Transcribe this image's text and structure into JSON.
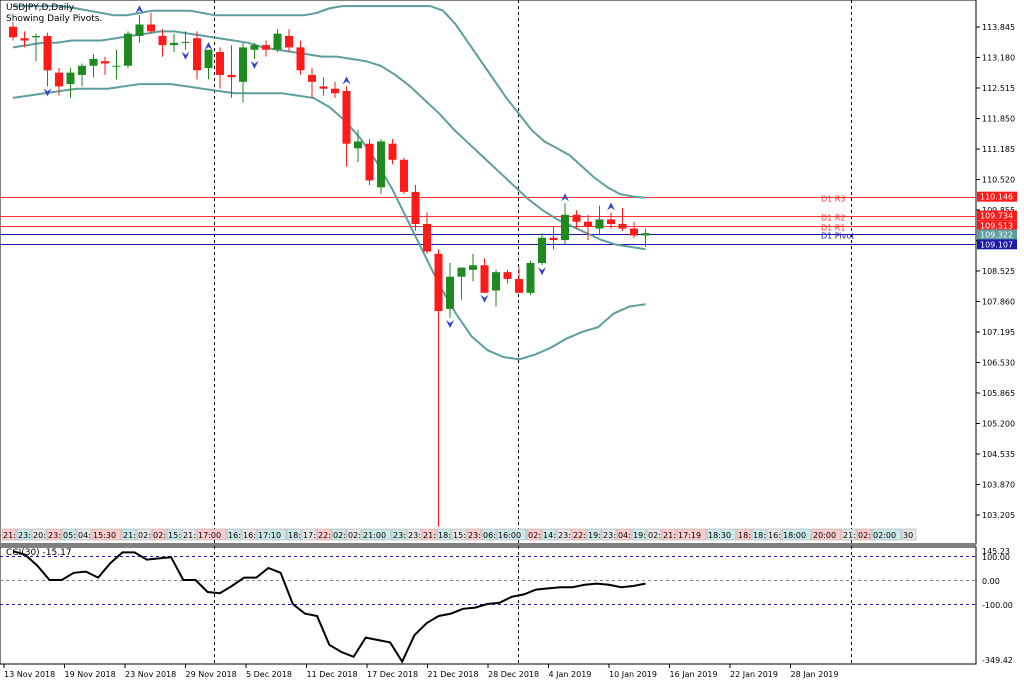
{
  "header": {
    "symbol_line": "USDJPY,D,Daily",
    "subtitle": "Showing Daily Pivots."
  },
  "colors": {
    "bull": "#1f8a1f",
    "bear": "#ff1a1a",
    "band": "#5f9ea0",
    "pivot_red": "#ff3333",
    "pivot_blue": "#1a1aa6",
    "arrow": "#3344cc"
  },
  "price_axis": {
    "labels": [
      "113.845",
      "113.180",
      "112.515",
      "111.850",
      "111.185",
      "110.520",
      "109.855",
      "109.190",
      "108.525",
      "107.860",
      "107.195",
      "106.530",
      "105.865",
      "105.200",
      "104.535",
      "103.870",
      "103.205"
    ],
    "highlight_labels": [
      {
        "text": "110.146",
        "color": "#ff1a1a"
      },
      {
        "text": "109.734",
        "color": "#ff1a1a"
      },
      {
        "text": "109.513",
        "color": "#ff1a1a"
      },
      {
        "text": "109.322",
        "color": "#5f9ea0"
      },
      {
        "text": "109.107",
        "color": "#1a1aa6"
      }
    ]
  },
  "pivots": [
    {
      "name": "D1 R3",
      "value": 110.146,
      "color": "#ff3333"
    },
    {
      "name": "D1 R2",
      "value": 109.734,
      "color": "#ff3333"
    },
    {
      "name": "D1 R1",
      "value": 109.513,
      "color": "#ff3333"
    },
    {
      "name": "D1 Pivot",
      "value": 109.322,
      "color": "#1a1aa6"
    },
    {
      "name": "",
      "value": 109.107,
      "color": "#1a1aa6"
    }
  ],
  "time_labels": [
    "21:",
    "23:",
    "20:",
    "23:",
    "05:",
    "04:",
    "15:30",
    "21:",
    "02:",
    "02:",
    "15:",
    "21:",
    "17:00",
    "16:",
    "16:",
    "17:10",
    "18:",
    "17:",
    "22:",
    "02:",
    "02:",
    "21:00",
    "23:",
    "23:",
    "21:",
    "18:",
    "15:",
    "23:",
    "06:",
    "16:00",
    "02:",
    "14:",
    "23:",
    "22:",
    "19:",
    "23:",
    "04:",
    "19:",
    "02:",
    "21:",
    "17:19",
    "18:30",
    "18:",
    "18:",
    "16:",
    "18:00",
    "20:00",
    "21:",
    "02:",
    "02:00",
    "30"
  ],
  "date_axis": [
    "13 Nov 2018",
    "19 Nov 2018",
    "23 Nov 2018",
    "29 Nov 2018",
    "5 Dec 2018",
    "11 Dec 2018",
    "17 Dec 2018",
    "21 Dec 2018",
    "28 Dec 2018",
    "4 Jan 2019",
    "10 Jan 2019",
    "16 Jan 2019",
    "22 Jan 2019",
    "28 Jan 2019"
  ],
  "cci": {
    "label": "CCI(30) -15.17",
    "axis_labels": [
      "145.23",
      "100.00",
      "0.00",
      "-100.00",
      "-349.42"
    ]
  },
  "chart_data": {
    "type": "candlestick",
    "title": "USDJPY,D,Daily",
    "ylim": [
      102.8,
      114.3
    ],
    "x_dates": [
      "13 Nov 2018",
      "19 Nov 2018",
      "23 Nov 2018",
      "29 Nov 2018",
      "5 Dec 2018",
      "11 Dec 2018",
      "17 Dec 2018",
      "21 Dec 2018",
      "28 Dec 2018",
      "4 Jan 2019",
      "10 Jan 2019",
      "16 Jan 2019",
      "22 Jan 2019",
      "28 Jan 2019"
    ],
    "candles": [
      {
        "o": 113.85,
        "h": 113.95,
        "l": 113.55,
        "c": 113.62
      },
      {
        "o": 113.6,
        "h": 113.75,
        "l": 113.4,
        "c": 113.55
      },
      {
        "o": 113.62,
        "h": 113.7,
        "l": 113.1,
        "c": 113.65
      },
      {
        "o": 113.65,
        "h": 113.72,
        "l": 112.55,
        "c": 112.9
      },
      {
        "o": 112.85,
        "h": 112.95,
        "l": 112.35,
        "c": 112.55
      },
      {
        "o": 112.6,
        "h": 112.95,
        "l": 112.3,
        "c": 112.85
      },
      {
        "o": 112.8,
        "h": 113.05,
        "l": 112.55,
        "c": 113.0
      },
      {
        "o": 113.0,
        "h": 113.25,
        "l": 112.75,
        "c": 113.15
      },
      {
        "o": 113.1,
        "h": 113.2,
        "l": 112.8,
        "c": 113.05
      },
      {
        "o": 113.0,
        "h": 113.35,
        "l": 112.7,
        "c": 113.0
      },
      {
        "o": 113.0,
        "h": 113.75,
        "l": 112.95,
        "c": 113.7
      },
      {
        "o": 113.65,
        "h": 114.1,
        "l": 113.5,
        "c": 113.9
      },
      {
        "o": 113.9,
        "h": 114.15,
        "l": 113.7,
        "c": 113.75
      },
      {
        "o": 113.65,
        "h": 113.8,
        "l": 113.2,
        "c": 113.45
      },
      {
        "o": 113.45,
        "h": 113.7,
        "l": 113.3,
        "c": 113.5
      },
      {
        "o": 113.5,
        "h": 113.75,
        "l": 113.35,
        "c": 113.52
      },
      {
        "o": 113.6,
        "h": 113.75,
        "l": 112.7,
        "c": 112.9
      },
      {
        "o": 112.95,
        "h": 113.3,
        "l": 112.7,
        "c": 113.35
      },
      {
        "o": 113.3,
        "h": 113.4,
        "l": 112.5,
        "c": 112.8
      },
      {
        "o": 112.8,
        "h": 113.45,
        "l": 112.3,
        "c": 112.75
      },
      {
        "o": 112.65,
        "h": 113.5,
        "l": 112.2,
        "c": 113.4
      },
      {
        "o": 113.35,
        "h": 113.5,
        "l": 113.15,
        "c": 113.45
      },
      {
        "o": 113.45,
        "h": 113.55,
        "l": 113.2,
        "c": 113.35
      },
      {
        "o": 113.35,
        "h": 113.8,
        "l": 113.3,
        "c": 113.7
      },
      {
        "o": 113.65,
        "h": 113.8,
        "l": 113.3,
        "c": 113.4
      },
      {
        "o": 113.4,
        "h": 113.55,
        "l": 112.8,
        "c": 112.9
      },
      {
        "o": 112.8,
        "h": 112.95,
        "l": 112.3,
        "c": 112.65
      },
      {
        "o": 112.55,
        "h": 112.75,
        "l": 112.35,
        "c": 112.5
      },
      {
        "o": 112.5,
        "h": 112.65,
        "l": 112.3,
        "c": 112.4
      },
      {
        "o": 112.45,
        "h": 112.55,
        "l": 110.8,
        "c": 111.3
      },
      {
        "o": 111.2,
        "h": 111.6,
        "l": 110.9,
        "c": 111.35
      },
      {
        "o": 111.3,
        "h": 111.4,
        "l": 110.4,
        "c": 110.5
      },
      {
        "o": 110.35,
        "h": 111.4,
        "l": 110.2,
        "c": 111.35
      },
      {
        "o": 111.3,
        "h": 111.4,
        "l": 110.85,
        "c": 110.95
      },
      {
        "o": 110.95,
        "h": 111.0,
        "l": 110.2,
        "c": 110.25
      },
      {
        "o": 110.25,
        "h": 110.4,
        "l": 109.4,
        "c": 109.55
      },
      {
        "o": 109.55,
        "h": 109.8,
        "l": 108.9,
        "c": 108.95
      },
      {
        "o": 108.9,
        "h": 109.0,
        "l": 102.95,
        "c": 107.65
      },
      {
        "o": 107.7,
        "h": 108.7,
        "l": 107.5,
        "c": 108.4
      },
      {
        "o": 108.4,
        "h": 108.6,
        "l": 107.9,
        "c": 108.6
      },
      {
        "o": 108.55,
        "h": 108.9,
        "l": 108.3,
        "c": 108.65
      },
      {
        "o": 108.65,
        "h": 108.8,
        "l": 108.05,
        "c": 108.05
      },
      {
        "o": 108.1,
        "h": 108.55,
        "l": 107.75,
        "c": 108.5
      },
      {
        "o": 108.5,
        "h": 108.55,
        "l": 108.25,
        "c": 108.35
      },
      {
        "o": 108.35,
        "h": 108.6,
        "l": 108.05,
        "c": 108.05
      },
      {
        "o": 108.05,
        "h": 108.75,
        "l": 108.0,
        "c": 108.7
      },
      {
        "o": 108.7,
        "h": 109.35,
        "l": 108.65,
        "c": 109.25
      },
      {
        "o": 109.25,
        "h": 109.5,
        "l": 109.0,
        "c": 109.2
      },
      {
        "o": 109.2,
        "h": 110.0,
        "l": 109.1,
        "c": 109.75
      },
      {
        "o": 109.75,
        "h": 109.85,
        "l": 109.45,
        "c": 109.6
      },
      {
        "o": 109.6,
        "h": 109.75,
        "l": 109.2,
        "c": 109.5
      },
      {
        "o": 109.45,
        "h": 109.95,
        "l": 109.3,
        "c": 109.65
      },
      {
        "o": 109.65,
        "h": 109.8,
        "l": 109.45,
        "c": 109.55
      },
      {
        "o": 109.55,
        "h": 109.9,
        "l": 109.4,
        "c": 109.45
      },
      {
        "o": 109.45,
        "h": 109.6,
        "l": 109.25,
        "c": 109.3
      },
      {
        "o": 109.3,
        "h": 109.45,
        "l": 109.05,
        "c": 109.35
      }
    ],
    "upper_band": [
      114.3,
      114.3,
      114.3,
      114.3,
      114.3,
      114.25,
      114.2,
      114.15,
      114.1,
      114.1,
      114.15,
      114.2,
      114.2,
      114.2,
      114.2,
      114.15,
      114.1,
      114.1,
      114.1,
      114.1,
      114.1,
      114.1,
      114.1,
      114.1,
      114.15,
      114.25,
      114.3,
      114.3,
      114.3,
      114.3,
      114.3,
      114.3,
      114.3,
      114.3,
      114.2,
      113.9,
      113.5,
      113.1,
      112.7,
      112.3,
      111.95,
      111.6,
      111.35,
      111.2,
      111.05,
      110.8,
      110.55,
      110.35,
      110.2,
      110.15,
      110.12
    ],
    "middle_band": [
      113.4,
      113.45,
      113.5,
      113.5,
      113.55,
      113.55,
      113.55,
      113.6,
      113.65,
      113.7,
      113.75,
      113.75,
      113.7,
      113.65,
      113.6,
      113.55,
      113.5,
      113.4,
      113.35,
      113.3,
      113.25,
      113.2,
      113.2,
      113.15,
      113.1,
      113.0,
      112.8,
      112.55,
      112.25,
      111.95,
      111.6,
      111.3,
      111.0,
      110.7,
      110.4,
      110.1,
      109.85,
      109.65,
      109.5,
      109.35,
      109.2,
      109.1,
      109.05,
      109.0
    ],
    "lower_band": [
      112.3,
      112.35,
      112.4,
      112.45,
      112.5,
      112.5,
      112.5,
      112.55,
      112.6,
      112.6,
      112.6,
      112.55,
      112.5,
      112.45,
      112.4,
      112.4,
      112.4,
      112.4,
      112.35,
      112.3,
      112.1,
      111.8,
      111.4,
      110.9,
      110.3,
      109.6,
      108.9,
      108.2,
      107.6,
      107.1,
      106.8,
      106.65,
      106.6,
      106.7,
      106.85,
      107.05,
      107.2,
      107.3,
      107.6,
      107.75,
      107.8
    ],
    "cci_values": [
      120,
      105,
      60,
      0,
      0,
      30,
      35,
      10,
      70,
      115,
      115,
      85,
      90,
      95,
      0,
      0,
      -50,
      -55,
      -25,
      10,
      10,
      50,
      30,
      -100,
      -140,
      -150,
      -270,
      -300,
      -320,
      -240,
      -250,
      -260,
      -340,
      -230,
      -180,
      -150,
      -140,
      -120,
      -115,
      -100,
      -95,
      -70,
      -60,
      -40,
      -35,
      -30,
      -30,
      -20,
      -15,
      -20,
      -30,
      -25,
      -15
    ]
  }
}
